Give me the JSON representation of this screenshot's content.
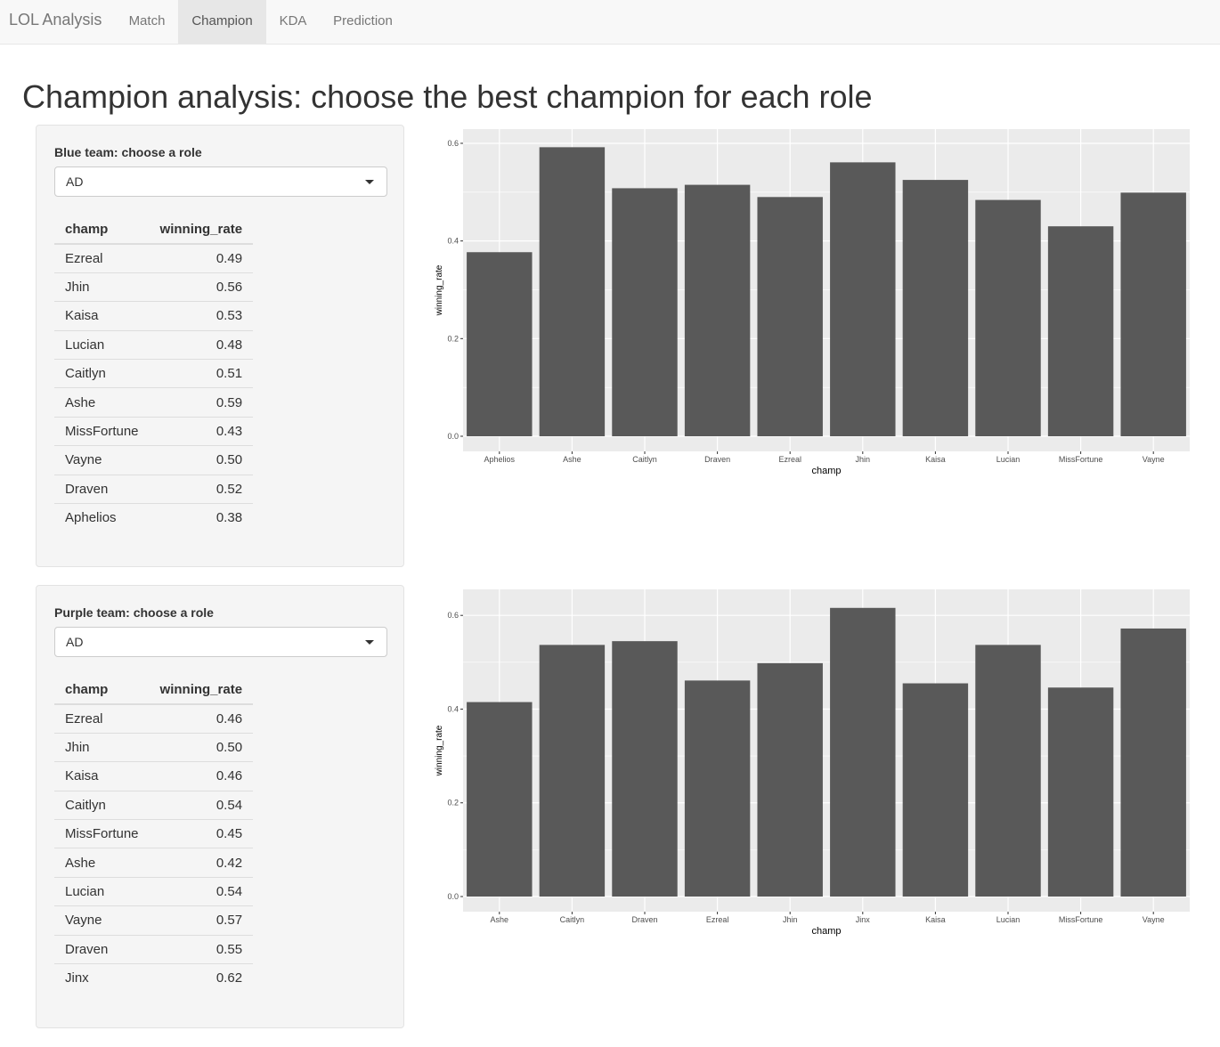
{
  "nav": {
    "brand": "LOL Analysis",
    "tabs": [
      {
        "label": "Match",
        "active": false
      },
      {
        "label": "Champion",
        "active": true
      },
      {
        "label": "KDA",
        "active": false
      },
      {
        "label": "Prediction",
        "active": false
      }
    ]
  },
  "page": {
    "title": "Champion analysis: choose the best champion for each role"
  },
  "blue": {
    "label": "Blue team: choose a role",
    "selected": "AD",
    "columns": [
      "champ",
      "winning_rate"
    ],
    "rows": [
      [
        "Ezreal",
        "0.49"
      ],
      [
        "Jhin",
        "0.56"
      ],
      [
        "Kaisa",
        "0.53"
      ],
      [
        "Lucian",
        "0.48"
      ],
      [
        "Caitlyn",
        "0.51"
      ],
      [
        "Ashe",
        "0.59"
      ],
      [
        "MissFortune",
        "0.43"
      ],
      [
        "Vayne",
        "0.50"
      ],
      [
        "Draven",
        "0.52"
      ],
      [
        "Aphelios",
        "0.38"
      ]
    ]
  },
  "purple": {
    "label": "Purple team: choose a role",
    "selected": "AD",
    "columns": [
      "champ",
      "winning_rate"
    ],
    "rows": [
      [
        "Ezreal",
        "0.46"
      ],
      [
        "Jhin",
        "0.50"
      ],
      [
        "Kaisa",
        "0.46"
      ],
      [
        "Caitlyn",
        "0.54"
      ],
      [
        "MissFortune",
        "0.45"
      ],
      [
        "Ashe",
        "0.42"
      ],
      [
        "Lucian",
        "0.54"
      ],
      [
        "Vayne",
        "0.57"
      ],
      [
        "Draven",
        "0.55"
      ],
      [
        "Jinx",
        "0.62"
      ]
    ]
  },
  "chart_data": [
    {
      "type": "bar",
      "categories": [
        "Aphelios",
        "Ashe",
        "Caitlyn",
        "Draven",
        "Ezreal",
        "Jhin",
        "Kaisa",
        "Lucian",
        "MissFortune",
        "Vayne"
      ],
      "values": [
        0.377,
        0.592,
        0.508,
        0.515,
        0.49,
        0.561,
        0.525,
        0.484,
        0.43,
        0.499
      ],
      "xlabel": "champ",
      "ylabel": "winning_rate",
      "ylim": [
        0,
        0.62
      ],
      "yticks": [
        "0.0",
        "0.2",
        "0.4",
        "0.6"
      ],
      "bar_color": "#595959",
      "panel_color": "#ebebeb",
      "grid": true
    },
    {
      "type": "bar",
      "categories": [
        "Ashe",
        "Caitlyn",
        "Draven",
        "Ezreal",
        "Jhin",
        "Jinx",
        "Kaisa",
        "Lucian",
        "MissFortune",
        "Vayne"
      ],
      "values": [
        0.415,
        0.537,
        0.545,
        0.461,
        0.498,
        0.616,
        0.455,
        0.537,
        0.446,
        0.572
      ],
      "xlabel": "champ",
      "ylabel": "winning_rate",
      "ylim": [
        0,
        0.646
      ],
      "yticks": [
        "0.0",
        "0.2",
        "0.4",
        "0.6"
      ],
      "bar_color": "#595959",
      "panel_color": "#ebebeb",
      "grid": true
    }
  ]
}
